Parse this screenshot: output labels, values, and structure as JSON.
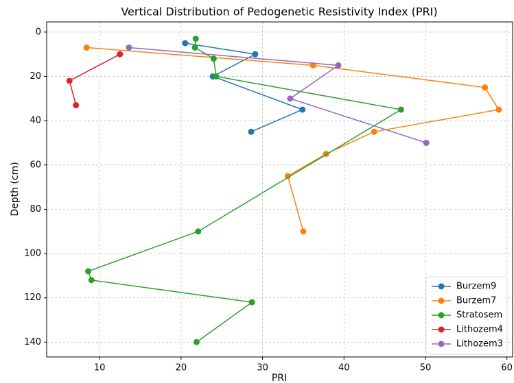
{
  "chart_data": {
    "type": "line",
    "title": "Vertical Distribution of Pedogenetic Resistivity Index (PRI)",
    "x_label": "PRI",
    "y_label": "Depth (cm)",
    "xlim": [
      3.5,
      60.7
    ],
    "ylim": [
      -4.6,
      146.7
    ],
    "y_inverted": true,
    "xticks": [
      10,
      20,
      30,
      40,
      50,
      60
    ],
    "yticks": [
      0,
      20,
      40,
      60,
      80,
      100,
      120,
      140
    ],
    "grid": true,
    "legend": "lower right",
    "series": [
      {
        "name": "Burzem9",
        "color": "#1f77b4",
        "x": [
          20.5,
          29.1,
          23.9,
          34.9,
          28.6
        ],
        "y": [
          5,
          10,
          20,
          35,
          45
        ]
      },
      {
        "name": "Burzem7",
        "color": "#ff7f0e",
        "x": [
          8.4,
          36.2,
          57.3,
          59.0,
          43.7,
          37.8,
          33.1,
          35.0
        ],
        "y": [
          7,
          15,
          25,
          35,
          45,
          55,
          65,
          90
        ]
      },
      {
        "name": "Stratosem",
        "color": "#2ca02c",
        "x": [
          21.8,
          21.7,
          24.0,
          24.3,
          47.0,
          22.1,
          8.6,
          9.0,
          28.7,
          21.9
        ],
        "y": [
          3,
          7,
          12,
          20,
          35,
          90,
          108,
          112,
          122,
          140
        ]
      },
      {
        "name": "Lithozem4",
        "color": "#d62728",
        "x": [
          12.5,
          6.3,
          7.1
        ],
        "y": [
          10,
          22,
          33
        ]
      },
      {
        "name": "Lithozem3",
        "color": "#9467bd",
        "x": [
          13.6,
          39.3,
          33.4,
          50.1
        ],
        "y": [
          7,
          15,
          30,
          50
        ]
      }
    ]
  }
}
